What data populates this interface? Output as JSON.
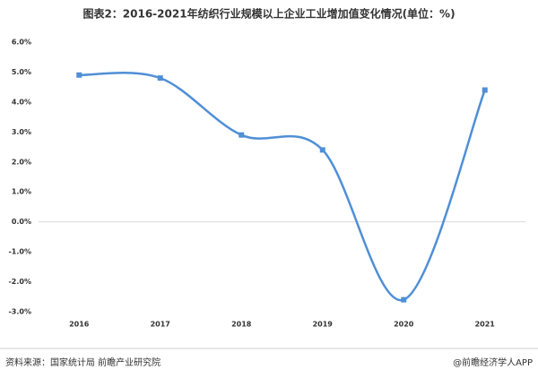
{
  "chart_data": {
    "type": "line",
    "title": "图表2：2016-2021年纺织行业规模以上企业工业增加值变化情况(单位：%)",
    "categories": [
      "2016",
      "2017",
      "2018",
      "2019",
      "2020",
      "2021"
    ],
    "series": [
      {
        "name": "工业增加值变化",
        "color": "#4f8fd6",
        "values": [
          4.9,
          4.8,
          2.9,
          2.4,
          -2.6,
          4.4
        ]
      }
    ],
    "ylim": [
      -3,
      6
    ],
    "yticks": [
      {
        "value": -3,
        "label": "-3.0%"
      },
      {
        "value": -2,
        "label": "-2.0%"
      },
      {
        "value": -1,
        "label": "-1.0%"
      },
      {
        "value": 0,
        "label": "0.0%"
      },
      {
        "value": 1,
        "label": "1.0%"
      },
      {
        "value": 2,
        "label": "2.0%"
      },
      {
        "value": 3,
        "label": "3.0%"
      },
      {
        "value": 4,
        "label": "4.0%"
      },
      {
        "value": 5,
        "label": "5.0%"
      },
      {
        "value": 6,
        "label": "6.0%"
      }
    ],
    "smooth": true,
    "source": "资料来源：国家统计局 前瞻产业研究院",
    "credit": "@前瞻经济学人APP"
  }
}
